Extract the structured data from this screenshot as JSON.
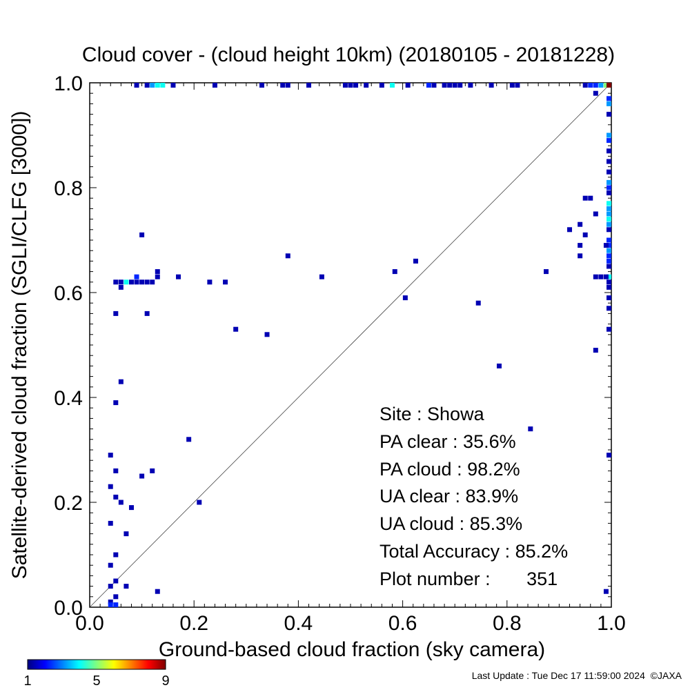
{
  "chart_data": {
    "type": "scatter",
    "title": "Cloud cover - (cloud height 10km)  (20180105 - 20181228)",
    "xlabel": "Ground-based cloud fraction (sky camera)",
    "ylabel": "Satellite-derived cloud fraction (SGLI/CLFG [3000])",
    "xlim": [
      0,
      1
    ],
    "ylim": [
      0,
      1
    ],
    "x_ticks": [
      "0.0",
      "0.2",
      "0.4",
      "0.6",
      "0.8",
      "1.0"
    ],
    "y_ticks": [
      "0.0",
      "0.2",
      "0.4",
      "0.6",
      "0.8",
      "1.0"
    ],
    "x_tick_values": [
      0,
      0.2,
      0.4,
      0.6,
      0.8,
      1.0
    ],
    "y_tick_values": [
      0,
      0.2,
      0.4,
      0.6,
      0.8,
      1.0
    ],
    "grid": false,
    "diagonal_line": true,
    "colorbar": {
      "ticks": [
        "1",
        "5",
        "9"
      ],
      "min": 1,
      "max": 9
    },
    "stats": [
      "Site : Showa",
      "PA clear :  35.6%",
      "PA cloud :  98.2%",
      "UA clear :  83.9%",
      "UA cloud :  85.3%",
      "Total Accuracy :  85.2%",
      "Plot number :       351"
    ],
    "points": [
      {
        "x": 0.09,
        "y": 1.0,
        "c": 1
      },
      {
        "x": 0.11,
        "y": 1.0,
        "c": 1
      },
      {
        "x": 0.12,
        "y": 1.0,
        "c": 3
      },
      {
        "x": 0.13,
        "y": 1.0,
        "c": 4
      },
      {
        "x": 0.14,
        "y": 1.0,
        "c": 4
      },
      {
        "x": 0.16,
        "y": 1.0,
        "c": 1
      },
      {
        "x": 0.24,
        "y": 1.0,
        "c": 1
      },
      {
        "x": 0.33,
        "y": 1.0,
        "c": 1
      },
      {
        "x": 0.37,
        "y": 1.0,
        "c": 1
      },
      {
        "x": 0.38,
        "y": 1.0,
        "c": 1
      },
      {
        "x": 0.42,
        "y": 1.0,
        "c": 1
      },
      {
        "x": 0.49,
        "y": 1.0,
        "c": 1
      },
      {
        "x": 0.5,
        "y": 1.0,
        "c": 1
      },
      {
        "x": 0.51,
        "y": 1.0,
        "c": 1
      },
      {
        "x": 0.53,
        "y": 1.0,
        "c": 1
      },
      {
        "x": 0.56,
        "y": 1.0,
        "c": 1
      },
      {
        "x": 0.58,
        "y": 1.0,
        "c": 4
      },
      {
        "x": 0.61,
        "y": 1.0,
        "c": 1
      },
      {
        "x": 0.65,
        "y": 1.0,
        "c": 2
      },
      {
        "x": 0.66,
        "y": 1.0,
        "c": 1
      },
      {
        "x": 0.68,
        "y": 1.0,
        "c": 1
      },
      {
        "x": 0.69,
        "y": 1.0,
        "c": 1
      },
      {
        "x": 0.7,
        "y": 1.0,
        "c": 1
      },
      {
        "x": 0.71,
        "y": 1.0,
        "c": 1
      },
      {
        "x": 0.73,
        "y": 1.0,
        "c": 1
      },
      {
        "x": 0.77,
        "y": 1.0,
        "c": 1
      },
      {
        "x": 0.81,
        "y": 1.0,
        "c": 1
      },
      {
        "x": 0.82,
        "y": 1.0,
        "c": 1
      },
      {
        "x": 0.95,
        "y": 1.0,
        "c": 1
      },
      {
        "x": 0.96,
        "y": 1.0,
        "c": 2
      },
      {
        "x": 0.97,
        "y": 1.0,
        "c": 2
      },
      {
        "x": 0.98,
        "y": 1.0,
        "c": 3
      },
      {
        "x": 0.99,
        "y": 1.0,
        "c": 5
      },
      {
        "x": 1.0,
        "y": 1.0,
        "c": 9
      },
      {
        "x": 0.97,
        "y": 0.98,
        "c": 1
      },
      {
        "x": 1.0,
        "y": 0.97,
        "c": 2
      },
      {
        "x": 1.0,
        "y": 0.96,
        "c": 3
      },
      {
        "x": 1.0,
        "y": 0.94,
        "c": 1
      },
      {
        "x": 1.0,
        "y": 0.9,
        "c": 3
      },
      {
        "x": 1.0,
        "y": 0.89,
        "c": 2
      },
      {
        "x": 1.0,
        "y": 0.87,
        "c": 1
      },
      {
        "x": 1.0,
        "y": 0.85,
        "c": 1
      },
      {
        "x": 1.0,
        "y": 0.83,
        "c": 1
      },
      {
        "x": 1.0,
        "y": 0.81,
        "c": 3
      },
      {
        "x": 1.0,
        "y": 0.8,
        "c": 2
      },
      {
        "x": 1.0,
        "y": 0.79,
        "c": 1
      },
      {
        "x": 1.0,
        "y": 0.77,
        "c": 4
      },
      {
        "x": 1.0,
        "y": 0.76,
        "c": 3
      },
      {
        "x": 1.0,
        "y": 0.75,
        "c": 3
      },
      {
        "x": 1.0,
        "y": 0.74,
        "c": 4
      },
      {
        "x": 1.0,
        "y": 0.73,
        "c": 3
      },
      {
        "x": 1.0,
        "y": 0.72,
        "c": 1
      },
      {
        "x": 1.0,
        "y": 0.7,
        "c": 2
      },
      {
        "x": 1.0,
        "y": 0.69,
        "c": 2
      },
      {
        "x": 1.0,
        "y": 0.68,
        "c": 3
      },
      {
        "x": 1.0,
        "y": 0.67,
        "c": 2
      },
      {
        "x": 1.0,
        "y": 0.66,
        "c": 2
      },
      {
        "x": 1.0,
        "y": 0.65,
        "c": 1
      },
      {
        "x": 1.0,
        "y": 0.63,
        "c": 4
      },
      {
        "x": 1.0,
        "y": 0.62,
        "c": 1
      },
      {
        "x": 1.0,
        "y": 0.61,
        "c": 1
      },
      {
        "x": 1.0,
        "y": 0.59,
        "c": 1
      },
      {
        "x": 1.0,
        "y": 0.57,
        "c": 1
      },
      {
        "x": 1.0,
        "y": 0.53,
        "c": 1
      },
      {
        "x": 1.0,
        "y": 0.29,
        "c": 1
      },
      {
        "x": 0.99,
        "y": 0.69,
        "c": 1
      },
      {
        "x": 0.99,
        "y": 0.63,
        "c": 1
      },
      {
        "x": 0.98,
        "y": 0.63,
        "c": 1
      },
      {
        "x": 0.97,
        "y": 0.63,
        "c": 1
      },
      {
        "x": 0.97,
        "y": 0.75,
        "c": 1
      },
      {
        "x": 0.97,
        "y": 0.49,
        "c": 1
      },
      {
        "x": 0.99,
        "y": 0.03,
        "c": 1
      },
      {
        "x": 0.95,
        "y": 0.78,
        "c": 1
      },
      {
        "x": 0.96,
        "y": 0.78,
        "c": 1
      },
      {
        "x": 0.94,
        "y": 0.73,
        "c": 1
      },
      {
        "x": 0.92,
        "y": 0.72,
        "c": 1
      },
      {
        "x": 0.95,
        "y": 0.71,
        "c": 1
      },
      {
        "x": 0.94,
        "y": 0.69,
        "c": 1
      },
      {
        "x": 0.94,
        "y": 0.67,
        "c": 1
      },
      {
        "x": 0.875,
        "y": 0.64,
        "c": 1
      },
      {
        "x": 0.845,
        "y": 0.34,
        "c": 1
      },
      {
        "x": 0.785,
        "y": 0.46,
        "c": 1
      },
      {
        "x": 0.745,
        "y": 0.58,
        "c": 1
      },
      {
        "x": 0.625,
        "y": 0.66,
        "c": 1
      },
      {
        "x": 0.585,
        "y": 0.64,
        "c": 1
      },
      {
        "x": 0.605,
        "y": 0.59,
        "c": 1
      },
      {
        "x": 0.445,
        "y": 0.63,
        "c": 1
      },
      {
        "x": 0.38,
        "y": 0.67,
        "c": 1
      },
      {
        "x": 0.34,
        "y": 0.52,
        "c": 1
      },
      {
        "x": 0.28,
        "y": 0.53,
        "c": 1
      },
      {
        "x": 0.26,
        "y": 0.62,
        "c": 1
      },
      {
        "x": 0.23,
        "y": 0.62,
        "c": 1
      },
      {
        "x": 0.17,
        "y": 0.63,
        "c": 1
      },
      {
        "x": 0.13,
        "y": 0.64,
        "c": 1
      },
      {
        "x": 0.13,
        "y": 0.63,
        "c": 1
      },
      {
        "x": 0.12,
        "y": 0.62,
        "c": 1
      },
      {
        "x": 0.11,
        "y": 0.62,
        "c": 1
      },
      {
        "x": 0.1,
        "y": 0.62,
        "c": 1
      },
      {
        "x": 0.09,
        "y": 0.62,
        "c": 1
      },
      {
        "x": 0.09,
        "y": 0.63,
        "c": 2
      },
      {
        "x": 0.08,
        "y": 0.62,
        "c": 1
      },
      {
        "x": 0.07,
        "y": 0.62,
        "c": 4
      },
      {
        "x": 0.06,
        "y": 0.62,
        "c": 1
      },
      {
        "x": 0.05,
        "y": 0.62,
        "c": 1
      },
      {
        "x": 0.06,
        "y": 0.61,
        "c": 1
      },
      {
        "x": 0.1,
        "y": 0.71,
        "c": 1
      },
      {
        "x": 0.11,
        "y": 0.56,
        "c": 1
      },
      {
        "x": 0.05,
        "y": 0.56,
        "c": 1
      },
      {
        "x": 0.06,
        "y": 0.43,
        "c": 1
      },
      {
        "x": 0.05,
        "y": 0.39,
        "c": 1
      },
      {
        "x": 0.19,
        "y": 0.32,
        "c": 1
      },
      {
        "x": 0.04,
        "y": 0.29,
        "c": 1
      },
      {
        "x": 0.05,
        "y": 0.26,
        "c": 1
      },
      {
        "x": 0.12,
        "y": 0.26,
        "c": 1
      },
      {
        "x": 0.1,
        "y": 0.25,
        "c": 1
      },
      {
        "x": 0.04,
        "y": 0.23,
        "c": 1
      },
      {
        "x": 0.05,
        "y": 0.21,
        "c": 1
      },
      {
        "x": 0.06,
        "y": 0.2,
        "c": 1
      },
      {
        "x": 0.21,
        "y": 0.2,
        "c": 1
      },
      {
        "x": 0.08,
        "y": 0.19,
        "c": 1
      },
      {
        "x": 0.04,
        "y": 0.16,
        "c": 1
      },
      {
        "x": 0.07,
        "y": 0.14,
        "c": 1
      },
      {
        "x": 0.05,
        "y": 0.1,
        "c": 1
      },
      {
        "x": 0.04,
        "y": 0.08,
        "c": 1
      },
      {
        "x": 0.05,
        "y": 0.05,
        "c": 1
      },
      {
        "x": 0.04,
        "y": 0.04,
        "c": 1
      },
      {
        "x": 0.07,
        "y": 0.04,
        "c": 1
      },
      {
        "x": 0.13,
        "y": 0.03,
        "c": 1
      },
      {
        "x": 0.05,
        "y": 0.02,
        "c": 1
      },
      {
        "x": 0.04,
        "y": 0.01,
        "c": 1
      },
      {
        "x": 0.04,
        "y": 0.0,
        "c": 2
      },
      {
        "x": 0.05,
        "y": 0.0,
        "c": 2
      }
    ]
  },
  "footer": {
    "last_update": "Last Update : Tue Dec 17 11:59:00 2024  ©JAXA"
  }
}
